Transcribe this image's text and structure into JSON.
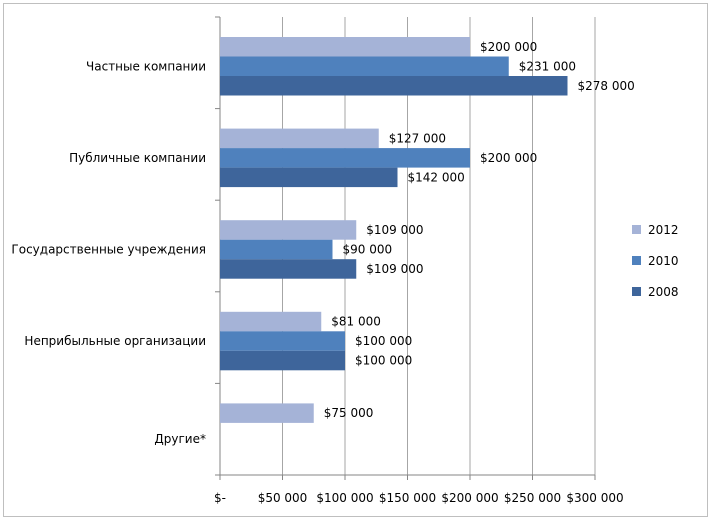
{
  "chart_data": {
    "type": "bar",
    "orientation": "horizontal",
    "categories": [
      "Частные компании",
      "Публичные компании",
      "Государственные учреждения",
      "Неприбыльные организации",
      "Другие*"
    ],
    "series": [
      {
        "name": "2012",
        "color": "#a5b3d7",
        "values": [
          200000,
          127000,
          109000,
          81000,
          75000
        ],
        "labels": [
          "$200 000",
          "$127 000",
          "$109 000",
          "$81 000",
          "$75 000"
        ]
      },
      {
        "name": "2010",
        "color": "#4f81bd",
        "values": [
          231000,
          200000,
          90000,
          100000,
          null
        ],
        "labels": [
          "$231 000",
          "$200 000",
          "$90 000",
          "$100 000",
          ""
        ]
      },
      {
        "name": "2008",
        "color": "#3e659b",
        "values": [
          278000,
          142000,
          109000,
          100000,
          null
        ],
        "labels": [
          "$278 000",
          "$142 000",
          "$109 000",
          "$100 000",
          ""
        ]
      }
    ],
    "xlim": [
      0,
      300000
    ],
    "x_ticks": [
      0,
      50000,
      100000,
      150000,
      200000,
      250000,
      300000
    ],
    "x_tick_labels": [
      "$-",
      "$50 000",
      "$100 000",
      "$150 000",
      "$200 000",
      "$250 000",
      "$300 000"
    ],
    "legend": {
      "position": "right",
      "entries": [
        "2012",
        "2010",
        "2008"
      ]
    },
    "grid": true,
    "title": "",
    "xlabel": "",
    "ylabel": ""
  }
}
